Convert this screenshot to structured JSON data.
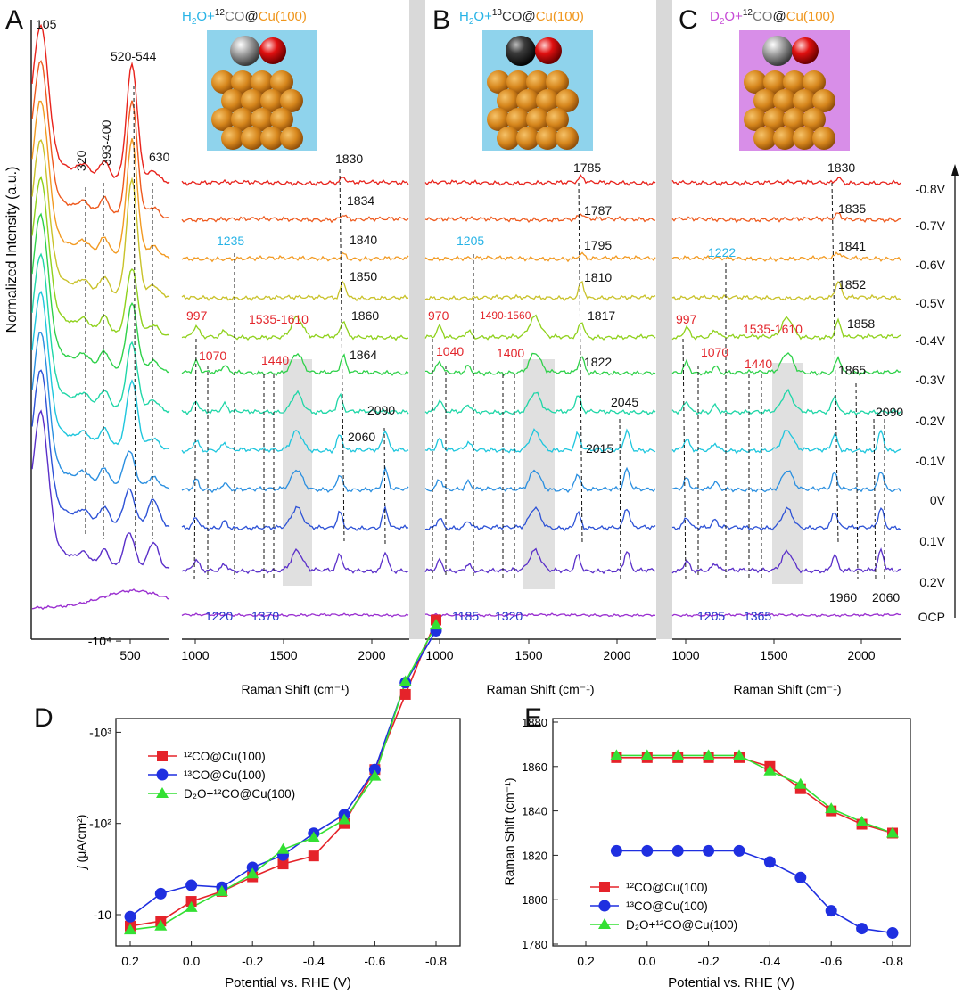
{
  "panels": {
    "A": {
      "letter": "A",
      "inset": {
        "title_parts": [
          "H",
          "2",
          "O+",
          "12",
          "CO",
          "@",
          "Cu(100)"
        ]
      },
      "low_labels": [
        "105",
        "520-544",
        "320",
        "393-400",
        "630"
      ],
      "high_labels_black": [
        "1830",
        "1834",
        "1840",
        "1850",
        "1860",
        "1864",
        "2090",
        "2060"
      ],
      "high_labels_red": [
        "997",
        "1070",
        "1535-1610",
        "1440"
      ],
      "high_labels_cyan": [
        "1235"
      ],
      "high_labels_blue": [
        "1220",
        "1370"
      ],
      "x_ticks_low": [
        "500"
      ],
      "x_ticks_high": [
        "1000",
        "1500",
        "2000"
      ],
      "xlabel": "Raman Shift (cm⁻¹)",
      "ylabel": "Normalized Intensity (a.u.)"
    },
    "B": {
      "letter": "B",
      "inset": {
        "title_parts": [
          "H",
          "2",
          "O+",
          "13",
          "CO",
          "@",
          "Cu(100)"
        ]
      },
      "labels_black": [
        "1785",
        "1787",
        "1795",
        "1810",
        "1817",
        "1822",
        "2045",
        "2015"
      ],
      "labels_red": [
        "970",
        "1490-1560",
        "1040",
        "1400"
      ],
      "labels_cyan": [
        "1205"
      ],
      "labels_blue": [
        "1185",
        "1320"
      ],
      "x_ticks": [
        "1000",
        "1500",
        "2000"
      ],
      "xlabel": "Raman Shift (cm⁻¹)"
    },
    "C": {
      "letter": "C",
      "inset": {
        "title_parts": [
          "D",
          "2",
          "O+",
          "12",
          "CO",
          "@",
          "Cu(100)"
        ]
      },
      "labels_black": [
        "1830",
        "1835",
        "1841",
        "1852",
        "1858",
        "1865",
        "2090",
        "1960",
        "2060"
      ],
      "labels_red": [
        "997",
        "1535-1610",
        "1070",
        "1440"
      ],
      "labels_cyan": [
        "1222"
      ],
      "labels_blue": [
        "1205",
        "1365"
      ],
      "x_ticks": [
        "1000",
        "1500",
        "2000"
      ],
      "xlabel": "Raman Shift (cm⁻¹)"
    },
    "potentials": [
      "-0.8V",
      "-0.7V",
      "-0.6V",
      "-0.5V",
      "-0.4V",
      "-0.3V",
      "-0.2V",
      "-0.1V",
      "0V",
      "0.1V",
      "0.2V",
      "OCP"
    ],
    "trace_colors": [
      "#e8231c",
      "#ee5a1e",
      "#f29a22",
      "#c9c22a",
      "#8fd11c",
      "#2fd14a",
      "#1fd6a7",
      "#1ec6dd",
      "#2a8fe0",
      "#2d52d6",
      "#5a2fc9",
      "#9a2fd0"
    ],
    "label_colors": {
      "black": "#111111",
      "red": "#e3262c",
      "cyan": "#27b3e6",
      "blue": "#2232c9",
      "orange": "#f0961c",
      "magenta": "#c64bd6"
    }
  },
  "chart_data": [
    {
      "panel": "D",
      "type": "line",
      "title": "",
      "xlabel": "Potential vs. RHE (V)",
      "ylabel": "j (μA/cm²)",
      "x": [
        0.2,
        0.1,
        0.0,
        -0.1,
        -0.2,
        -0.3,
        -0.4,
        -0.5,
        -0.6,
        -0.7,
        -0.8
      ],
      "y_scale": "log",
      "y_tick_labels": [
        "-10",
        "-10²",
        "-10³",
        "-10⁴"
      ],
      "x_tick_labels": [
        "0.2",
        "0.0",
        "-0.2",
        "-0.4",
        "-0.6",
        "-0.8"
      ],
      "series": [
        {
          "name": "¹²CO@Cu(100)",
          "color": "#e5232a",
          "marker": "square",
          "values": [
            -7.5,
            -8.5,
            -14,
            -18,
            -26,
            -36,
            -44,
            -100,
            -390,
            -2600,
            -17000
          ]
        },
        {
          "name": "¹³CO@Cu(100)",
          "color": "#1f2fe0",
          "marker": "circle",
          "values": [
            -9.5,
            -17,
            -21,
            -20,
            -33,
            -45,
            -78,
            -125,
            -390,
            -3500,
            -13000
          ]
        },
        {
          "name": "D₂O+¹²CO@Cu(100)",
          "color": "#33e033",
          "marker": "triangle",
          "values": [
            -6.8,
            -7.5,
            -12,
            -18,
            -28,
            -52,
            -70,
            -110,
            -330,
            -3600,
            -15000
          ]
        }
      ],
      "legend": "top-left"
    },
    {
      "panel": "E",
      "type": "line",
      "title": "",
      "xlabel": "Potential vs. RHE (V)",
      "ylabel": "Raman Shift (cm⁻¹)",
      "x": [
        0.1,
        0.0,
        -0.1,
        -0.2,
        -0.3,
        -0.4,
        -0.5,
        -0.6,
        -0.7,
        -0.8
      ],
      "ylim": [
        1780,
        1880
      ],
      "y_ticks": [
        1780,
        1800,
        1820,
        1840,
        1860,
        1880
      ],
      "x_tick_labels": [
        "0.2",
        "0.0",
        "-0.2",
        "-0.4",
        "-0.6",
        "-0.8"
      ],
      "series": [
        {
          "name": "¹²CO@Cu(100)",
          "color": "#e5232a",
          "marker": "square",
          "values": [
            1864,
            1864,
            1864,
            1864,
            1864,
            1860,
            1850,
            1840,
            1834,
            1830
          ]
        },
        {
          "name": "¹³CO@Cu(100)",
          "color": "#1f2fe0",
          "marker": "circle",
          "values": [
            1822,
            1822,
            1822,
            1822,
            1822,
            1817,
            1810,
            1795,
            1787,
            1785
          ]
        },
        {
          "name": "D₂O+¹²CO@Cu(100)",
          "color": "#33e033",
          "marker": "triangle",
          "values": [
            1865,
            1865,
            1865,
            1865,
            1865,
            1858,
            1852,
            1841,
            1835,
            1830
          ]
        }
      ],
      "legend": "bottom-left"
    }
  ]
}
